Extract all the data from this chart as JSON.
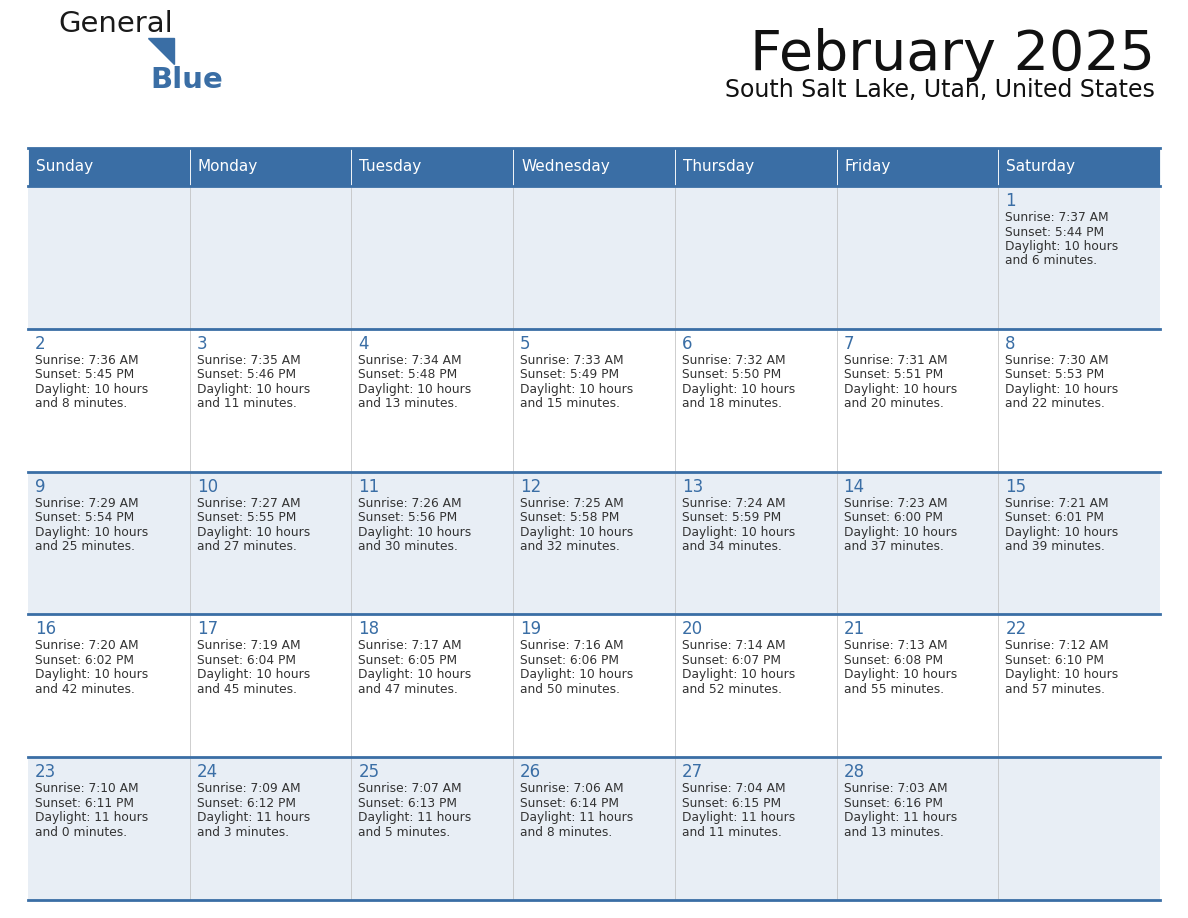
{
  "title": "February 2025",
  "subtitle": "South Salt Lake, Utah, United States",
  "header_color": "#3a6ea5",
  "header_text_color": "#ffffff",
  "row_bg_odd": "#e8eef5",
  "row_bg_even": "#ffffff",
  "day_number_color": "#3a6ea5",
  "text_color": "#333333",
  "border_color": "#3a6ea5",
  "col_divider_color": "#bbbbbb",
  "days_of_week": [
    "Sunday",
    "Monday",
    "Tuesday",
    "Wednesday",
    "Thursday",
    "Friday",
    "Saturday"
  ],
  "calendar_data": [
    [
      null,
      null,
      null,
      null,
      null,
      null,
      {
        "day": 1,
        "sunrise": "7:37 AM",
        "sunset": "5:44 PM",
        "daylight": "10 hours and 6 minutes."
      }
    ],
    [
      {
        "day": 2,
        "sunrise": "7:36 AM",
        "sunset": "5:45 PM",
        "daylight": "10 hours and 8 minutes."
      },
      {
        "day": 3,
        "sunrise": "7:35 AM",
        "sunset": "5:46 PM",
        "daylight": "10 hours and 11 minutes."
      },
      {
        "day": 4,
        "sunrise": "7:34 AM",
        "sunset": "5:48 PM",
        "daylight": "10 hours and 13 minutes."
      },
      {
        "day": 5,
        "sunrise": "7:33 AM",
        "sunset": "5:49 PM",
        "daylight": "10 hours and 15 minutes."
      },
      {
        "day": 6,
        "sunrise": "7:32 AM",
        "sunset": "5:50 PM",
        "daylight": "10 hours and 18 minutes."
      },
      {
        "day": 7,
        "sunrise": "7:31 AM",
        "sunset": "5:51 PM",
        "daylight": "10 hours and 20 minutes."
      },
      {
        "day": 8,
        "sunrise": "7:30 AM",
        "sunset": "5:53 PM",
        "daylight": "10 hours and 22 minutes."
      }
    ],
    [
      {
        "day": 9,
        "sunrise": "7:29 AM",
        "sunset": "5:54 PM",
        "daylight": "10 hours and 25 minutes."
      },
      {
        "day": 10,
        "sunrise": "7:27 AM",
        "sunset": "5:55 PM",
        "daylight": "10 hours and 27 minutes."
      },
      {
        "day": 11,
        "sunrise": "7:26 AM",
        "sunset": "5:56 PM",
        "daylight": "10 hours and 30 minutes."
      },
      {
        "day": 12,
        "sunrise": "7:25 AM",
        "sunset": "5:58 PM",
        "daylight": "10 hours and 32 minutes."
      },
      {
        "day": 13,
        "sunrise": "7:24 AM",
        "sunset": "5:59 PM",
        "daylight": "10 hours and 34 minutes."
      },
      {
        "day": 14,
        "sunrise": "7:23 AM",
        "sunset": "6:00 PM",
        "daylight": "10 hours and 37 minutes."
      },
      {
        "day": 15,
        "sunrise": "7:21 AM",
        "sunset": "6:01 PM",
        "daylight": "10 hours and 39 minutes."
      }
    ],
    [
      {
        "day": 16,
        "sunrise": "7:20 AM",
        "sunset": "6:02 PM",
        "daylight": "10 hours and 42 minutes."
      },
      {
        "day": 17,
        "sunrise": "7:19 AM",
        "sunset": "6:04 PM",
        "daylight": "10 hours and 45 minutes."
      },
      {
        "day": 18,
        "sunrise": "7:17 AM",
        "sunset": "6:05 PM",
        "daylight": "10 hours and 47 minutes."
      },
      {
        "day": 19,
        "sunrise": "7:16 AM",
        "sunset": "6:06 PM",
        "daylight": "10 hours and 50 minutes."
      },
      {
        "day": 20,
        "sunrise": "7:14 AM",
        "sunset": "6:07 PM",
        "daylight": "10 hours and 52 minutes."
      },
      {
        "day": 21,
        "sunrise": "7:13 AM",
        "sunset": "6:08 PM",
        "daylight": "10 hours and 55 minutes."
      },
      {
        "day": 22,
        "sunrise": "7:12 AM",
        "sunset": "6:10 PM",
        "daylight": "10 hours and 57 minutes."
      }
    ],
    [
      {
        "day": 23,
        "sunrise": "7:10 AM",
        "sunset": "6:11 PM",
        "daylight": "11 hours and 0 minutes."
      },
      {
        "day": 24,
        "sunrise": "7:09 AM",
        "sunset": "6:12 PM",
        "daylight": "11 hours and 3 minutes."
      },
      {
        "day": 25,
        "sunrise": "7:07 AM",
        "sunset": "6:13 PM",
        "daylight": "11 hours and 5 minutes."
      },
      {
        "day": 26,
        "sunrise": "7:06 AM",
        "sunset": "6:14 PM",
        "daylight": "11 hours and 8 minutes."
      },
      {
        "day": 27,
        "sunrise": "7:04 AM",
        "sunset": "6:15 PM",
        "daylight": "11 hours and 11 minutes."
      },
      {
        "day": 28,
        "sunrise": "7:03 AM",
        "sunset": "6:16 PM",
        "daylight": "11 hours and 13 minutes."
      },
      null
    ]
  ]
}
